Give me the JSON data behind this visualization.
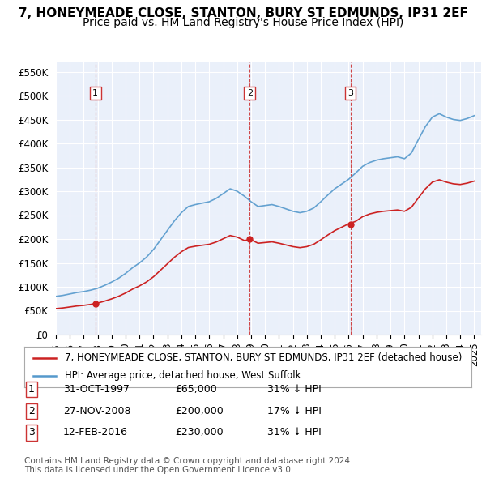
{
  "title": "7, HONEYMEADE CLOSE, STANTON, BURY ST EDMUNDS, IP31 2EF",
  "subtitle": "Price paid vs. HM Land Registry's House Price Index (HPI)",
  "xlabel": "",
  "ylabel": "",
  "ylim": [
    0,
    570000
  ],
  "xlim_start": 1995.0,
  "xlim_end": 2025.5,
  "yticks": [
    0,
    50000,
    100000,
    150000,
    200000,
    250000,
    300000,
    350000,
    400000,
    450000,
    500000,
    550000
  ],
  "ytick_labels": [
    "£0",
    "£50K",
    "£100K",
    "£150K",
    "£200K",
    "£250K",
    "£300K",
    "£350K",
    "£400K",
    "£450K",
    "£500K",
    "£550K"
  ],
  "hpi_color": "#5599cc",
  "price_color": "#cc2222",
  "background_color": "#eaf0fa",
  "sale_dates": [
    1997.83,
    2008.9,
    2016.12
  ],
  "sale_prices": [
    65000,
    200000,
    230000
  ],
  "sale_labels": [
    "1",
    "2",
    "3"
  ],
  "vline_color": "#cc3333",
  "legend_line1": "7, HONEYMEADE CLOSE, STANTON, BURY ST EDMUNDS, IP31 2EF (detached house)",
  "legend_line2": "HPI: Average price, detached house, West Suffolk",
  "table_entries": [
    [
      "1",
      "31-OCT-1997",
      "£65,000",
      "31% ↓ HPI"
    ],
    [
      "2",
      "27-NOV-2008",
      "£200,000",
      "17% ↓ HPI"
    ],
    [
      "3",
      "12-FEB-2016",
      "£230,000",
      "31% ↓ HPI"
    ]
  ],
  "footnote": "Contains HM Land Registry data © Crown copyright and database right 2024.\nThis data is licensed under the Open Government Licence v3.0.",
  "title_fontsize": 11,
  "subtitle_fontsize": 10,
  "tick_fontsize": 8.5,
  "legend_fontsize": 8.5,
  "table_fontsize": 9,
  "footnote_fontsize": 7.5
}
